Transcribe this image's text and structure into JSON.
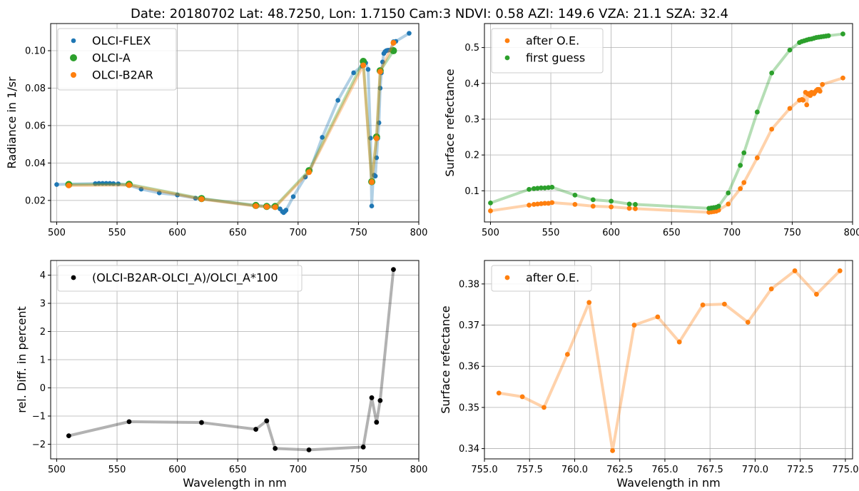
{
  "suptitle": "Date: 20180702 Lat: 48.7250, Lon: 1.7150 Cam:3 NDVI: 0.58 AZI: 149.6 VZA: 21.1 SZA: 32.4",
  "colors": {
    "blue": "#1f77b4",
    "green": "#2ca02c",
    "orange": "#ff7f0e",
    "black": "#000000",
    "grid": "#b0b0b0"
  },
  "chart_data": [
    {
      "type": "line",
      "xlabel": "",
      "ylabel": "Radiance in 1/sr",
      "xlim": [
        495,
        800
      ],
      "ylim": [
        0.0085,
        0.1145
      ],
      "xticks": [
        500,
        550,
        600,
        650,
        700,
        750,
        800
      ],
      "yticks": [
        0.02,
        0.04,
        0.06,
        0.08,
        0.1
      ],
      "yticklabels": [
        "0.02",
        "0.04",
        "0.06",
        "0.08",
        "0.10"
      ],
      "grid": true,
      "legend_position": "top-left",
      "series": [
        {
          "name": "OLCI-FLEX",
          "color": "#1f77b4",
          "marker_size": "small",
          "x": [
            500,
            510,
            532,
            535,
            538,
            541,
            544,
            547,
            551,
            560,
            570,
            585,
            600,
            615,
            620,
            665,
            674,
            682,
            685,
            687,
            688,
            689,
            690,
            696,
            706,
            710,
            720,
            733,
            746,
            753,
            756,
            758,
            760,
            761,
            762,
            763,
            764,
            765,
            766,
            767,
            768,
            769,
            770,
            771,
            772,
            773,
            774,
            775,
            777,
            779,
            781,
            792
          ],
          "y": [
            0.0285,
            0.0287,
            0.029,
            0.0291,
            0.0291,
            0.0291,
            0.0291,
            0.029,
            0.0289,
            0.0281,
            0.026,
            0.024,
            0.0229,
            0.0212,
            0.0209,
            0.0172,
            0.0168,
            0.0165,
            0.0155,
            0.014,
            0.0135,
            0.0141,
            0.0148,
            0.022,
            0.0325,
            0.0362,
            0.0537,
            0.0735,
            0.0882,
            0.0918,
            0.0935,
            0.09,
            0.0533,
            0.017,
            0.0298,
            0.0335,
            0.033,
            0.0428,
            0.0532,
            0.0615,
            0.08,
            0.0882,
            0.094,
            0.0985,
            0.0995,
            0.1,
            0.1002,
            0.1003,
            0.1005,
            0.1048,
            0.105,
            0.1093
          ]
        },
        {
          "name": "OLCI-A",
          "color": "#2ca02c",
          "marker_size": "large",
          "x": [
            510,
            560,
            620,
            665,
            674,
            681,
            709,
            754,
            761,
            765,
            768,
            779
          ],
          "y": [
            0.0285,
            0.0286,
            0.021,
            0.0173,
            0.0168,
            0.0168,
            0.0359,
            0.0943,
            0.03,
            0.0539,
            0.0893,
            0.1
          ]
        },
        {
          "name": "OLCI-B2AR",
          "color": "#ff7f0e",
          "marker_size": "medium",
          "x": [
            510,
            560,
            620,
            665,
            674,
            681,
            709,
            754,
            761,
            765,
            768,
            779
          ],
          "y": [
            0.028,
            0.0282,
            0.0207,
            0.017,
            0.0166,
            0.0164,
            0.0351,
            0.0922,
            0.0298,
            0.0532,
            0.0888,
            0.1042
          ]
        }
      ]
    },
    {
      "type": "line",
      "xlabel": "",
      "ylabel": "Surface refectance",
      "xlim": [
        495,
        800
      ],
      "ylim": [
        0.013,
        0.567
      ],
      "xticks": [
        500,
        550,
        600,
        650,
        700,
        750,
        800
      ],
      "yticks": [
        0.1,
        0.2,
        0.3,
        0.4,
        0.5
      ],
      "yticklabels": [
        "0.1",
        "0.2",
        "0.3",
        "0.4",
        "0.5"
      ],
      "grid": true,
      "legend_position": "top-left",
      "series": [
        {
          "name": "after O.E.",
          "color": "#ff7f0e",
          "x": [
            500,
            532,
            536,
            539,
            542,
            545,
            548,
            551,
            570,
            585,
            600,
            615,
            620,
            681,
            683,
            685,
            687,
            689,
            697,
            707,
            710,
            721,
            733,
            748,
            756,
            758,
            759,
            761,
            762,
            763,
            764,
            765,
            766,
            767,
            768,
            769,
            770,
            771,
            772,
            773,
            775,
            792
          ],
          "y": [
            0.044,
            0.06,
            0.062,
            0.063,
            0.064,
            0.065,
            0.065,
            0.067,
            0.062,
            0.057,
            0.055,
            0.051,
            0.05,
            0.04,
            0.041,
            0.042,
            0.043,
            0.046,
            0.063,
            0.106,
            0.123,
            0.192,
            0.272,
            0.33,
            0.353,
            0.355,
            0.353,
            0.375,
            0.34,
            0.37,
            0.372,
            0.366,
            0.375,
            0.374,
            0.371,
            0.376,
            0.38,
            0.383,
            0.383,
            0.378,
            0.397,
            0.415
          ]
        },
        {
          "name": "first guess",
          "color": "#2ca02c",
          "x": [
            500,
            532,
            536,
            539,
            542,
            545,
            548,
            551,
            570,
            585,
            600,
            615,
            620,
            681,
            683,
            685,
            687,
            689,
            697,
            707,
            710,
            721,
            733,
            748,
            756,
            758,
            760,
            762,
            764,
            766,
            768,
            770,
            772,
            774,
            776,
            778,
            780,
            792
          ],
          "y": [
            0.066,
            0.104,
            0.106,
            0.107,
            0.108,
            0.108,
            0.109,
            0.11,
            0.088,
            0.075,
            0.071,
            0.063,
            0.062,
            0.051,
            0.052,
            0.053,
            0.054,
            0.057,
            0.094,
            0.171,
            0.206,
            0.32,
            0.429,
            0.493,
            0.514,
            0.517,
            0.519,
            0.521,
            0.523,
            0.524,
            0.526,
            0.528,
            0.529,
            0.53,
            0.531,
            0.532,
            0.533,
            0.538
          ]
        }
      ]
    },
    {
      "type": "line",
      "xlabel": "Wavelength in nm",
      "ylabel": "rel. Diff. in percent",
      "xlim": [
        495,
        800
      ],
      "ylim": [
        -2.52,
        4.52
      ],
      "xticks": [
        500,
        550,
        600,
        650,
        700,
        750,
        800
      ],
      "yticks": [
        -2,
        -1,
        0,
        1,
        2,
        3,
        4
      ],
      "yticklabels": [
        "−2",
        "−1",
        "0",
        "1",
        "2",
        "3",
        "4"
      ],
      "grid": true,
      "legend_position": "top-left",
      "series": [
        {
          "name": "(OLCI-B2AR-OLCI_A)/OLCI_A*100",
          "color": "#000000",
          "x": [
            510,
            560,
            620,
            665,
            674,
            681,
            709,
            754,
            761,
            765,
            768,
            779
          ],
          "y": [
            -1.7,
            -1.2,
            -1.23,
            -1.47,
            -1.17,
            -2.15,
            -2.2,
            -2.1,
            -0.35,
            -1.22,
            -0.45,
            4.2
          ]
        }
      ]
    },
    {
      "type": "line",
      "xlabel": "Wavelength in nm",
      "ylabel": "Surface refectance",
      "xlim": [
        755.0,
        775.4
      ],
      "ylim": [
        0.3375,
        0.3857
      ],
      "xticks": [
        755.0,
        757.5,
        760.0,
        762.5,
        765.0,
        767.5,
        770.0,
        772.5,
        775.0
      ],
      "xticklabels": [
        "755.0",
        "757.5",
        "760.0",
        "762.5",
        "765.0",
        "767.5",
        "770.0",
        "772.5",
        "775.0"
      ],
      "yticks": [
        0.34,
        0.35,
        0.36,
        0.37,
        0.38
      ],
      "yticklabels": [
        "0.34",
        "0.35",
        "0.36",
        "0.37",
        "0.38"
      ],
      "grid": true,
      "legend_position": "top-left",
      "series": [
        {
          "name": "after O.E.",
          "color": "#ff7f0e",
          "x": [
            755.8,
            757.1,
            758.3,
            759.6,
            760.8,
            762.1,
            763.3,
            764.6,
            765.8,
            767.1,
            768.3,
            769.6,
            770.9,
            772.2,
            773.4,
            774.7
          ],
          "y": [
            0.3535,
            0.3526,
            0.35,
            0.3629,
            0.3755,
            0.3395,
            0.37,
            0.372,
            0.3659,
            0.3749,
            0.3751,
            0.3707,
            0.3788,
            0.3832,
            0.3775,
            0.3832
          ]
        }
      ]
    }
  ]
}
